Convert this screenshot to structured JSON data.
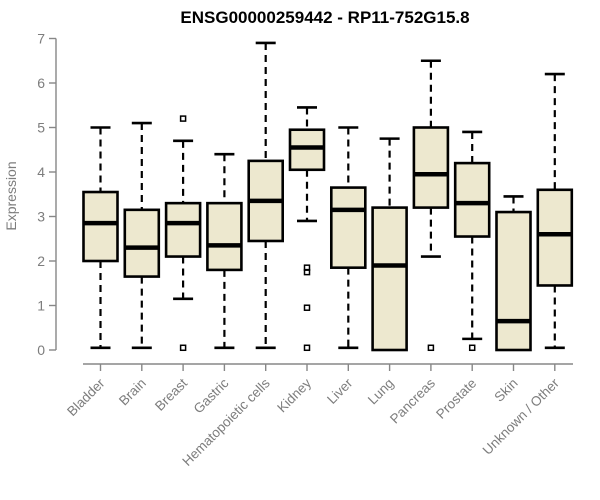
{
  "title": "ENSG00000259442 - RP11-752G15.8",
  "colors": {
    "box_fill": "#EDE8CF",
    "box_border": "#000000",
    "median": "#000000",
    "whisker": "#000000",
    "outlier": "#000000",
    "axis": "#878787",
    "tick_label": "#7d7d7d",
    "title_color": "#000000",
    "background": "#ffffff"
  },
  "chart_data": {
    "type": "boxplot",
    "title": "ENSG00000259442 - RP11-752G15.8",
    "xlabel": "",
    "ylabel": "Expression",
    "ylim": [
      0,
      7
    ],
    "yticks": [
      0,
      1,
      2,
      3,
      4,
      5,
      6,
      7
    ],
    "grid": false,
    "legend": false,
    "whisker_style": "dashed",
    "categories": [
      "Bladder",
      "Brain",
      "Breast",
      "Gastric",
      "Hematopoietic cells",
      "Kidney",
      "Liver",
      "Lung",
      "Pancreas",
      "Prostate",
      "Skin",
      "Unknown / Other"
    ],
    "series": [
      {
        "category": "Bladder",
        "whisker_low": 0.05,
        "q1": 2.0,
        "median": 2.85,
        "q3": 3.55,
        "whisker_high": 5.0,
        "outliers": []
      },
      {
        "category": "Brain",
        "whisker_low": 0.05,
        "q1": 1.65,
        "median": 2.3,
        "q3": 3.15,
        "whisker_high": 5.1,
        "outliers": []
      },
      {
        "category": "Breast",
        "whisker_low": 1.15,
        "q1": 2.1,
        "median": 2.85,
        "q3": 3.3,
        "whisker_high": 4.7,
        "outliers": [
          5.2,
          0.05
        ]
      },
      {
        "category": "Gastric",
        "whisker_low": 0.05,
        "q1": 1.8,
        "median": 2.35,
        "q3": 3.3,
        "whisker_high": 4.4,
        "outliers": []
      },
      {
        "category": "Hematopoietic cells",
        "whisker_low": 0.05,
        "q1": 2.45,
        "median": 3.35,
        "q3": 4.25,
        "whisker_high": 6.9,
        "outliers": []
      },
      {
        "category": "Kidney",
        "whisker_low": 2.9,
        "q1": 4.05,
        "median": 4.55,
        "q3": 4.95,
        "whisker_high": 5.45,
        "outliers": [
          1.85,
          1.75,
          0.95,
          0.05
        ]
      },
      {
        "category": "Liver",
        "whisker_low": 0.05,
        "q1": 1.85,
        "median": 3.15,
        "q3": 3.65,
        "whisker_high": 5.0,
        "outliers": []
      },
      {
        "category": "Lung",
        "whisker_low": 0.0,
        "q1": 0.0,
        "median": 1.9,
        "q3": 3.2,
        "whisker_high": 4.75,
        "outliers": []
      },
      {
        "category": "Pancreas",
        "whisker_low": 2.1,
        "q1": 3.2,
        "median": 3.95,
        "q3": 5.0,
        "whisker_high": 6.5,
        "outliers": [
          0.05
        ]
      },
      {
        "category": "Prostate",
        "whisker_low": 0.25,
        "q1": 2.55,
        "median": 3.3,
        "q3": 4.2,
        "whisker_high": 4.9,
        "outliers": [
          0.05
        ]
      },
      {
        "category": "Skin",
        "whisker_low": 0.0,
        "q1": 0.0,
        "median": 0.65,
        "q3": 3.1,
        "whisker_high": 3.45,
        "outliers": []
      },
      {
        "category": "Unknown / Other",
        "whisker_low": 0.05,
        "q1": 1.45,
        "median": 2.6,
        "q3": 3.6,
        "whisker_high": 6.2,
        "outliers": []
      }
    ]
  }
}
